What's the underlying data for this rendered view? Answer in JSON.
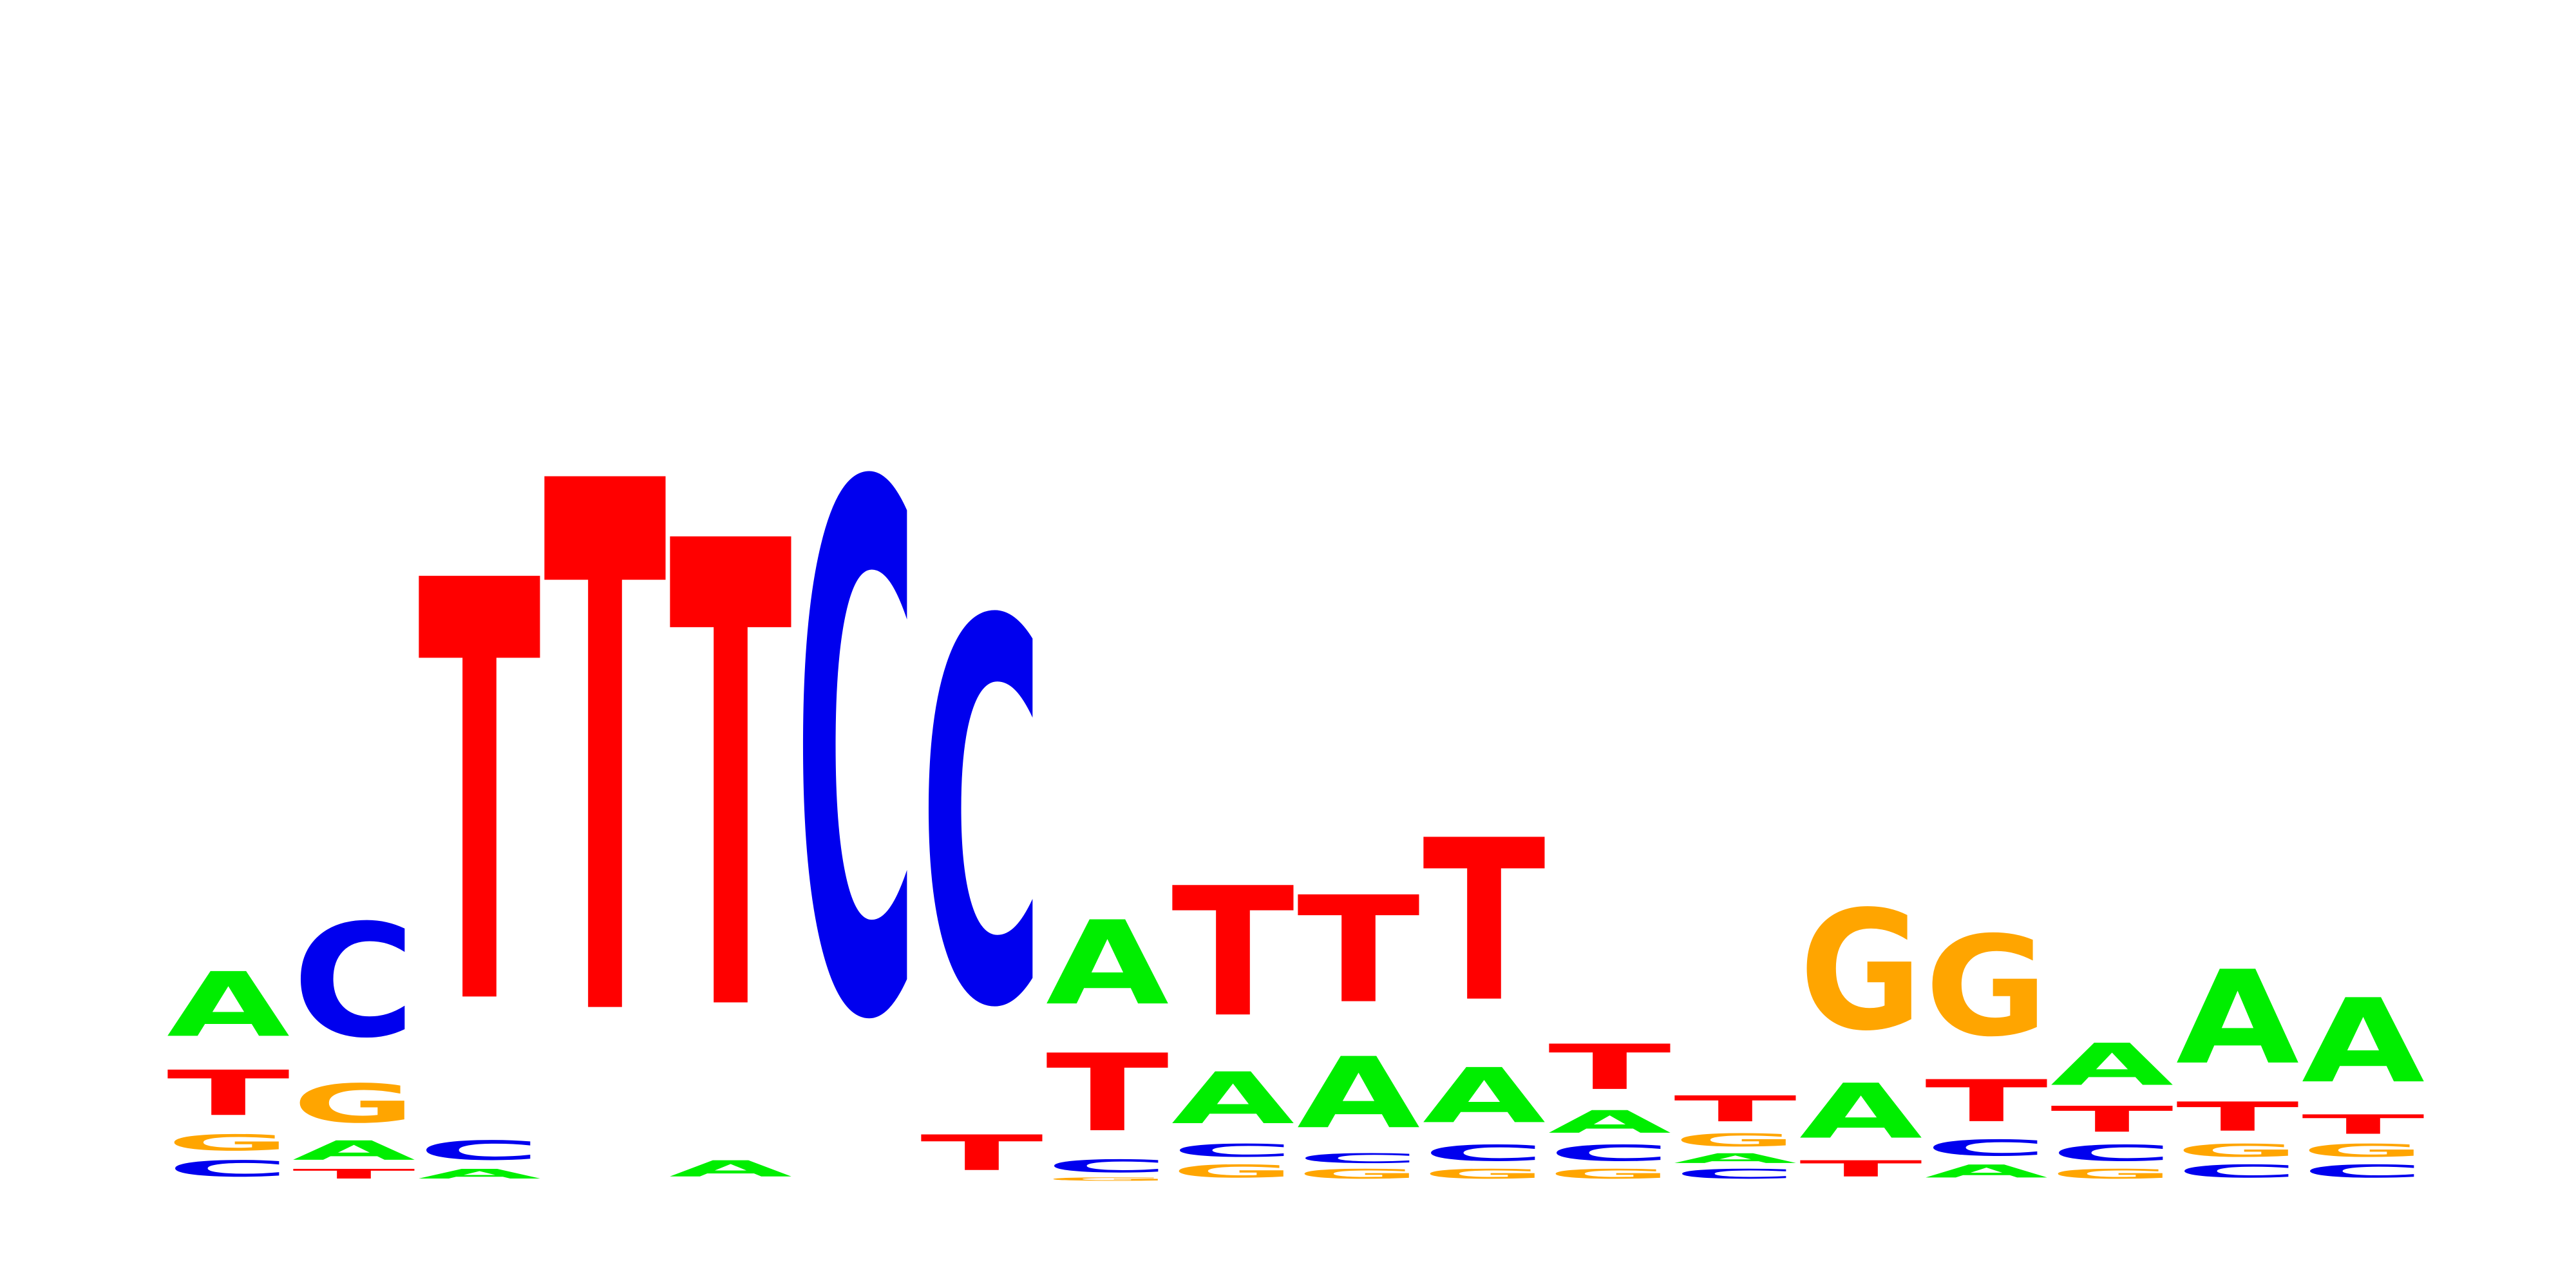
{
  "logo": {
    "colors": {
      "A": "#00ee00",
      "C": "#0000ee",
      "G": "#ffa500",
      "T": "#ff0000"
    },
    "max_bits": 2.0,
    "positions": [
      [
        [
          "C",
          0.05
        ],
        [
          "G",
          0.05
        ],
        [
          "T",
          0.14
        ],
        [
          "A",
          0.2
        ]
      ],
      [
        [
          "T",
          0.03
        ],
        [
          "A",
          0.06
        ],
        [
          "G",
          0.12
        ],
        [
          "C",
          0.35
        ]
      ],
      [
        [
          "A",
          0.03
        ],
        [
          "C",
          0.06
        ],
        [
          "T",
          1.3
        ]
      ],
      [
        [
          "T",
          1.64
        ]
      ],
      [
        [
          "A",
          0.05
        ],
        [
          "T",
          1.44
        ]
      ],
      [
        [
          "C",
          1.63
        ]
      ],
      [
        [
          "T",
          0.11
        ],
        [
          "C",
          1.18
        ]
      ],
      [
        [
          "G",
          0.01
        ],
        [
          "C",
          0.04
        ],
        [
          "T",
          0.24
        ],
        [
          "A",
          0.26
        ]
      ],
      [
        [
          "G",
          0.04
        ],
        [
          "C",
          0.04
        ],
        [
          "A",
          0.16
        ],
        [
          "T",
          0.4
        ]
      ],
      [
        [
          "G",
          0.03
        ],
        [
          "C",
          0.03
        ],
        [
          "A",
          0.22
        ],
        [
          "T",
          0.33
        ]
      ],
      [
        [
          "G",
          0.03
        ],
        [
          "C",
          0.05
        ],
        [
          "A",
          0.17
        ],
        [
          "T",
          0.5
        ]
      ],
      [
        [
          "G",
          0.03
        ],
        [
          "C",
          0.05
        ],
        [
          "A",
          0.07
        ],
        [
          "T",
          0.14
        ]
      ],
      [
        [
          "C",
          0.03
        ],
        [
          "A",
          0.03
        ],
        [
          "G",
          0.04
        ],
        [
          "T",
          0.08
        ]
      ],
      [
        [
          "T",
          0.05
        ],
        [
          "A",
          0.17
        ],
        [
          "G",
          0.37
        ]
      ],
      [
        [
          "A",
          0.04
        ],
        [
          "C",
          0.05
        ],
        [
          "T",
          0.13
        ],
        [
          "G",
          0.31
        ]
      ],
      [
        [
          "G",
          0.03
        ],
        [
          "C",
          0.05
        ],
        [
          "T",
          0.08
        ],
        [
          "A",
          0.13
        ]
      ],
      [
        [
          "C",
          0.04
        ],
        [
          "G",
          0.04
        ],
        [
          "T",
          0.09
        ],
        [
          "A",
          0.29
        ]
      ],
      [
        [
          "C",
          0.04
        ],
        [
          "G",
          0.04
        ],
        [
          "T",
          0.06
        ],
        [
          "A",
          0.26
        ]
      ]
    ]
  }
}
